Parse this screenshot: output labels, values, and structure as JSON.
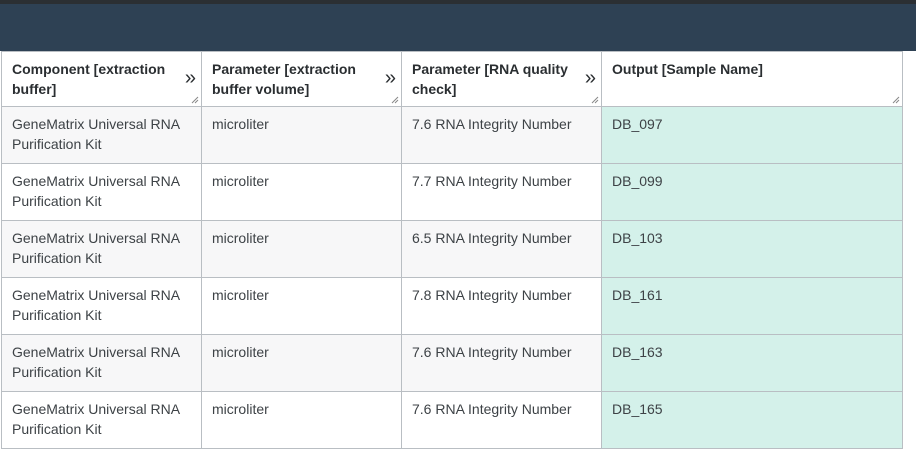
{
  "table": {
    "headers": [
      {
        "label": "Component [extraction buffer]"
      },
      {
        "label": "Parameter [extraction buffer volume]"
      },
      {
        "label": "Parameter [RNA quality check]"
      },
      {
        "label": "Output [Sample Name]"
      }
    ],
    "expand_glyph": "»",
    "rows": [
      {
        "component": "GeneMatrix Universal RNA Purification Kit",
        "volume": "microliter",
        "quality": "7.6 RNA Integrity Number",
        "sample": "DB_097"
      },
      {
        "component": "GeneMatrix Universal RNA Purification Kit",
        "volume": "microliter",
        "quality": "7.7 RNA Integrity Number",
        "sample": "DB_099"
      },
      {
        "component": "GeneMatrix Universal RNA Purification Kit",
        "volume": "microliter",
        "quality": "6.5 RNA Integrity Number",
        "sample": "DB_103"
      },
      {
        "component": "GeneMatrix Universal RNA Purification Kit",
        "volume": "microliter",
        "quality": "7.8 RNA Integrity Number",
        "sample": "DB_161"
      },
      {
        "component": "GeneMatrix Universal RNA Purification Kit",
        "volume": "microliter",
        "quality": "7.6 RNA Integrity Number",
        "sample": "DB_163"
      },
      {
        "component": "GeneMatrix Universal RNA Purification Kit",
        "volume": "microliter",
        "quality": "7.6 RNA Integrity Number",
        "sample": "DB_165"
      }
    ]
  },
  "colors": {
    "header_bar": "#2e4154",
    "output_cell": "#d4f1ea",
    "border": "#b9bec3"
  }
}
